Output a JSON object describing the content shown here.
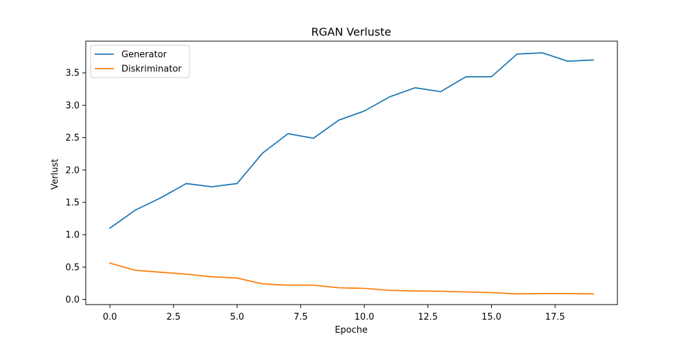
{
  "chart_data": {
    "type": "line",
    "title": "RGAN Verluste",
    "xlabel": "Epoche",
    "ylabel": "Verlust",
    "x": [
      0,
      1,
      2,
      3,
      4,
      5,
      6,
      7,
      8,
      9,
      10,
      11,
      12,
      13,
      14,
      15,
      16,
      17,
      18,
      19
    ],
    "series": [
      {
        "name": "Generator",
        "color": "#1f77b4",
        "values": [
          1.1,
          1.38,
          1.57,
          1.79,
          1.74,
          1.79,
          2.26,
          2.56,
          2.49,
          2.77,
          2.91,
          3.13,
          3.27,
          3.21,
          3.44,
          3.44,
          3.79,
          3.81,
          3.68,
          3.7
        ]
      },
      {
        "name": "Diskriminator",
        "color": "#ff7f0e",
        "values": [
          0.56,
          0.45,
          0.42,
          0.39,
          0.35,
          0.33,
          0.24,
          0.22,
          0.22,
          0.18,
          0.17,
          0.14,
          0.13,
          0.125,
          0.115,
          0.105,
          0.085,
          0.09,
          0.09,
          0.085
        ]
      }
    ],
    "xlim": [
      -0.95,
      19.95
    ],
    "ylim": [
      -0.08,
      3.99
    ],
    "xticks": [
      0.0,
      2.5,
      5.0,
      7.5,
      10.0,
      12.5,
      15.0,
      17.5
    ],
    "xtick_labels": [
      "0.0",
      "2.5",
      "5.0",
      "7.5",
      "10.0",
      "12.5",
      "15.0",
      "17.5"
    ],
    "yticks": [
      0.0,
      0.5,
      1.0,
      1.5,
      2.0,
      2.5,
      3.0,
      3.5
    ],
    "ytick_labels": [
      "0.0",
      "0.5",
      "1.0",
      "1.5",
      "2.0",
      "2.5",
      "3.0",
      "3.5"
    ],
    "grid": false,
    "legend": "top-left"
  }
}
